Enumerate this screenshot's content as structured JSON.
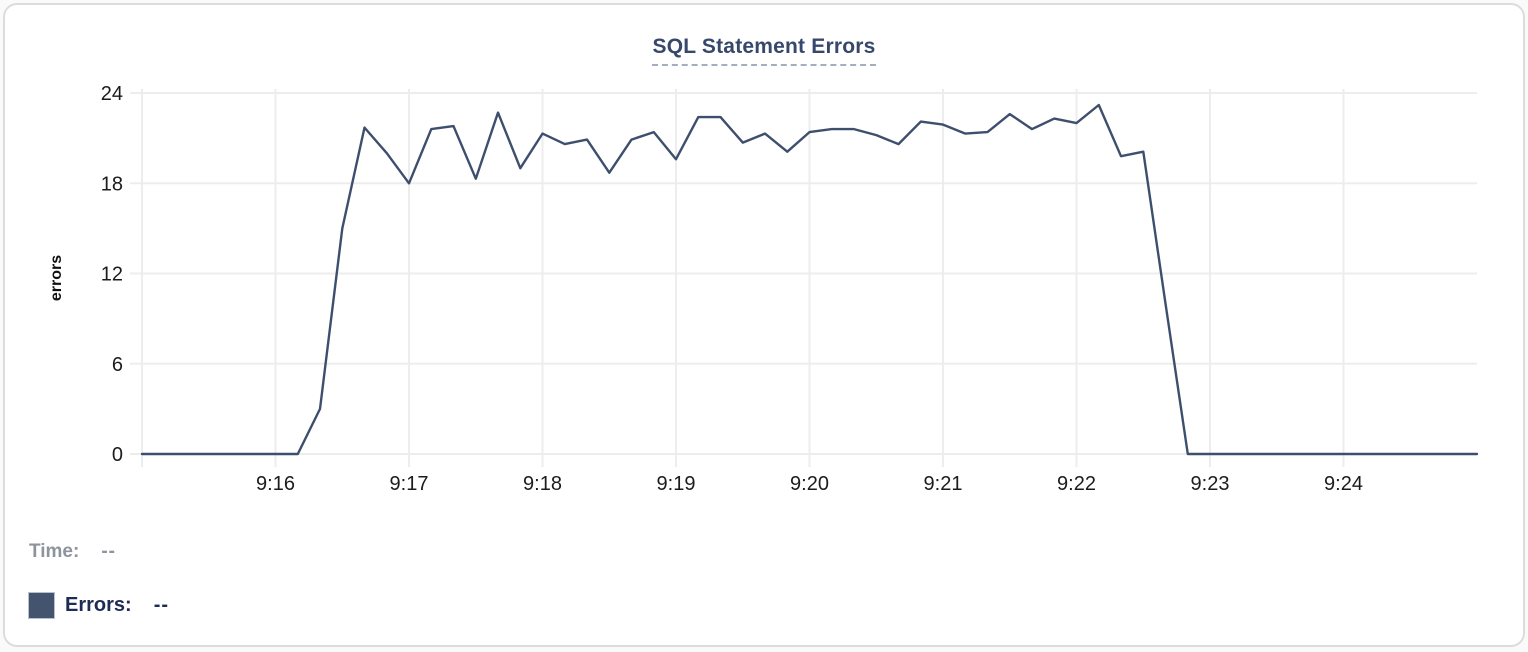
{
  "chart": {
    "title": "SQL Statement Errors",
    "ylabel": "errors"
  },
  "legend": {
    "time_label": "Time:",
    "time_value": "--",
    "errors_label": "Errors:",
    "errors_value": "--",
    "swatch_color": "#44546f"
  },
  "chart_data": {
    "type": "line",
    "title": "SQL Statement Errors",
    "xlabel": "",
    "ylabel": "errors",
    "x_start": "9:15:00",
    "x_end": "9:25:00",
    "x_ticks": [
      "9:16",
      "9:17",
      "9:18",
      "9:19",
      "9:20",
      "9:21",
      "9:22",
      "9:23",
      "9:24"
    ],
    "y_ticks": [
      0,
      6,
      12,
      18,
      24
    ],
    "ylim": [
      0,
      24
    ],
    "grid": true,
    "legend_position": "bottom-left",
    "series": [
      {
        "name": "Errors",
        "color": "#3e4f6d",
        "points": [
          [
            "9:15:00",
            0
          ],
          [
            "9:15:10",
            0
          ],
          [
            "9:15:20",
            0
          ],
          [
            "9:15:30",
            0
          ],
          [
            "9:15:40",
            0
          ],
          [
            "9:15:50",
            0
          ],
          [
            "9:16:00",
            0
          ],
          [
            "9:16:10",
            0
          ],
          [
            "9:16:20",
            3
          ],
          [
            "9:16:30",
            15
          ],
          [
            "9:16:40",
            21.7
          ],
          [
            "9:16:50",
            20
          ],
          [
            "9:17:00",
            18
          ],
          [
            "9:17:10",
            21.6
          ],
          [
            "9:17:20",
            21.8
          ],
          [
            "9:17:30",
            18.3
          ],
          [
            "9:17:40",
            22.7
          ],
          [
            "9:17:50",
            19
          ],
          [
            "9:18:00",
            21.3
          ],
          [
            "9:18:10",
            20.6
          ],
          [
            "9:18:20",
            20.9
          ],
          [
            "9:18:30",
            18.7
          ],
          [
            "9:18:40",
            20.9
          ],
          [
            "9:18:50",
            21.4
          ],
          [
            "9:19:00",
            19.6
          ],
          [
            "9:19:10",
            22.4
          ],
          [
            "9:19:20",
            22.4
          ],
          [
            "9:19:30",
            20.7
          ],
          [
            "9:19:40",
            21.3
          ],
          [
            "9:19:50",
            20.1
          ],
          [
            "9:20:00",
            21.4
          ],
          [
            "9:20:10",
            21.6
          ],
          [
            "9:20:20",
            21.6
          ],
          [
            "9:20:30",
            21.2
          ],
          [
            "9:20:40",
            20.6
          ],
          [
            "9:20:50",
            22.1
          ],
          [
            "9:21:00",
            21.9
          ],
          [
            "9:21:10",
            21.3
          ],
          [
            "9:21:20",
            21.4
          ],
          [
            "9:21:30",
            22.6
          ],
          [
            "9:21:40",
            21.6
          ],
          [
            "9:21:50",
            22.3
          ],
          [
            "9:22:00",
            22.0
          ],
          [
            "9:22:10",
            23.2
          ],
          [
            "9:22:20",
            19.8
          ],
          [
            "9:22:30",
            20.1
          ],
          [
            "9:22:40",
            10
          ],
          [
            "9:22:50",
            0
          ],
          [
            "9:23:00",
            0
          ],
          [
            "9:23:10",
            0
          ],
          [
            "9:23:20",
            0
          ],
          [
            "9:23:30",
            0
          ],
          [
            "9:23:40",
            0
          ],
          [
            "9:23:50",
            0
          ],
          [
            "9:24:00",
            0
          ],
          [
            "9:24:10",
            0
          ],
          [
            "9:24:20",
            0
          ],
          [
            "9:24:30",
            0
          ],
          [
            "9:24:40",
            0
          ],
          [
            "9:24:50",
            0
          ],
          [
            "9:25:00",
            0
          ]
        ]
      }
    ]
  }
}
